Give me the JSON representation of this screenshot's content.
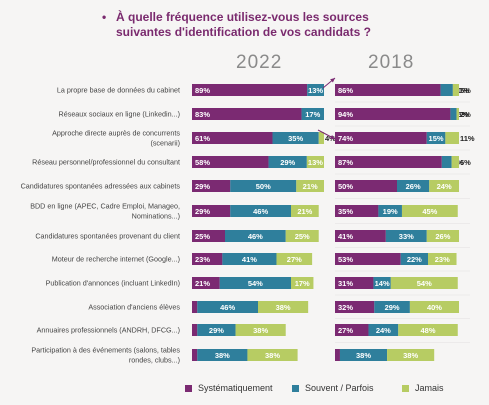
{
  "title_line1": "À quelle fréquence utilisez-vous les sources",
  "title_line2": "suivantes d'identification de vos candidats ?",
  "bullet": "•",
  "colors": {
    "systematique": "#7b2a72",
    "souvent": "#2f7f9c",
    "jamais": "#b7cc63",
    "background": "#f6f5f4"
  },
  "legend": [
    "Systématiquement",
    "Souvent / Parfois",
    "Jamais"
  ],
  "chart_data": [
    {
      "type": "bar",
      "title": "2022",
      "stacked": true,
      "orientation": "horizontal",
      "categories": [
        "La propre base de données du cabinet",
        "Réseaux sociaux en ligne (Linkedin...)",
        "Approche directe auprès de concurrents (scenarii)",
        "Réseau personnel/professionnel du consultant",
        "Candidatures spontanées adressées aux cabinets",
        "BDD en ligne (APEC, Cadre Emploi, Manageo, Nominations...)",
        "Candidatures spontanées provenant du client",
        "Moteur de recherche internet (Google...)",
        "Publication d'annonces (incluant LinkedIn)",
        "Association d'anciens élèves",
        "Annuaires professionnels (ANDRH, DFCG...)",
        "Participation à des événements (salons, tables rondes, clubs...)"
      ],
      "series": [
        {
          "name": "Systématiquement",
          "values": [
            89,
            83,
            61,
            58,
            29,
            29,
            25,
            23,
            21,
            4,
            4,
            4
          ]
        },
        {
          "name": "Souvent / Parfois",
          "values": [
            13,
            17,
            35,
            29,
            50,
            46,
            46,
            41,
            54,
            46,
            29,
            38
          ]
        },
        {
          "name": "Jamais",
          "values": [
            0,
            0,
            4,
            13,
            21,
            21,
            25,
            27,
            17,
            38,
            38,
            38
          ]
        }
      ]
    },
    {
      "type": "bar",
      "title": "2018",
      "stacked": true,
      "orientation": "horizontal",
      "categories": [
        "La propre base de données du cabinet",
        "Réseaux sociaux en ligne (Linkedin...)",
        "Approche directe auprès de concurrents (scenarii)",
        "Réseau personnel/professionnel du consultant",
        "Candidatures spontanées adressées aux cabinets",
        "BDD en ligne (APEC, Cadre Emploi, Manageo, Nominations...)",
        "Candidatures spontanées provenant du client",
        "Moteur de recherche internet (Google...)",
        "Publication d'annonces (incluant LinkedIn)",
        "Association d'anciens élèves",
        "Annuaires professionnels (ANDRH, DFCG...)",
        "Participation à des événements (salons, tables rondes, clubs...)"
      ],
      "series": [
        {
          "name": "Systématiquement",
          "values": [
            86,
            94,
            74,
            87,
            50,
            35,
            41,
            53,
            31,
            32,
            27,
            4
          ]
        },
        {
          "name": "Souvent / Parfois",
          "values": [
            10,
            5,
            15,
            8,
            26,
            19,
            33,
            22,
            14,
            29,
            24,
            38
          ]
        },
        {
          "name": "Jamais",
          "values": [
            5,
            2,
            11,
            6,
            24,
            45,
            26,
            23,
            54,
            40,
            48,
            38
          ]
        }
      ]
    }
  ]
}
